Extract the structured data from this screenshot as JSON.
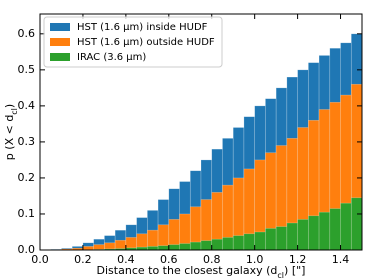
{
  "chart_data": {
    "type": "histogram",
    "xlabel": [
      "Distance to the closest galaxy (d",
      "cl",
      ") [\"]"
    ],
    "ylabel": [
      "p (X < d",
      "cl",
      ")"
    ],
    "bins": [
      0,
      0.05,
      0.1,
      0.15,
      0.2,
      0.25,
      0.3,
      0.35,
      0.4,
      0.45,
      0.5,
      0.55,
      0.6,
      0.65,
      0.7,
      0.75,
      0.8,
      0.85,
      0.9,
      0.95,
      1.0,
      1.05,
      1.1,
      1.15,
      1.2,
      1.25,
      1.3,
      1.35,
      1.4,
      1.45,
      1.5
    ],
    "series": [
      {
        "name": "HST (1.6 μm) inside HUDF",
        "color": "#1f77b4",
        "values": [
          0,
          0.002,
          0.005,
          0.01,
          0.02,
          0.03,
          0.04,
          0.055,
          0.07,
          0.09,
          0.11,
          0.14,
          0.17,
          0.19,
          0.22,
          0.25,
          0.28,
          0.31,
          0.34,
          0.37,
          0.4,
          0.42,
          0.45,
          0.48,
          0.5,
          0.52,
          0.54,
          0.56,
          0.575,
          0.6
        ]
      },
      {
        "name": "HST (1.6 μm) outside HUDF",
        "color": "#ff7f0e",
        "values": [
          0,
          0.001,
          0.003,
          0.005,
          0.01,
          0.015,
          0.02,
          0.027,
          0.035,
          0.045,
          0.055,
          0.07,
          0.085,
          0.1,
          0.12,
          0.14,
          0.16,
          0.18,
          0.2,
          0.225,
          0.25,
          0.27,
          0.29,
          0.31,
          0.34,
          0.36,
          0.39,
          0.41,
          0.43,
          0.46
        ]
      },
      {
        "name": "IRAC (3.6 μm)",
        "color": "#2ca02c",
        "values": [
          0,
          0,
          0,
          0,
          0.001,
          0.002,
          0.003,
          0.004,
          0.006,
          0.008,
          0.01,
          0.012,
          0.015,
          0.018,
          0.022,
          0.026,
          0.03,
          0.035,
          0.04,
          0.045,
          0.05,
          0.06,
          0.065,
          0.075,
          0.085,
          0.095,
          0.105,
          0.115,
          0.13,
          0.145
        ]
      }
    ],
    "xlim": [
      0,
      1.5
    ],
    "ylim": [
      0,
      0.655
    ],
    "xticks": [
      {
        "value": 0,
        "label": "0.0"
      },
      {
        "value": 0.2,
        "label": "0.2"
      },
      {
        "value": 0.4,
        "label": "0.4"
      },
      {
        "value": 0.6,
        "label": "0.6"
      },
      {
        "value": 0.8,
        "label": "0.8"
      },
      {
        "value": 1.0,
        "label": "1.0"
      },
      {
        "value": 1.2,
        "label": "1.2"
      },
      {
        "value": 1.4,
        "label": "1.4"
      }
    ],
    "yticks": [
      {
        "value": 0,
        "label": "0.0"
      },
      {
        "value": 0.1,
        "label": "0.1"
      },
      {
        "value": 0.2,
        "label": "0.2"
      },
      {
        "value": 0.3,
        "label": "0.3"
      },
      {
        "value": 0.4,
        "label": "0.4"
      },
      {
        "value": 0.5,
        "label": "0.5"
      },
      {
        "value": 0.6,
        "label": "0.6"
      }
    ],
    "legend": "upper left"
  }
}
